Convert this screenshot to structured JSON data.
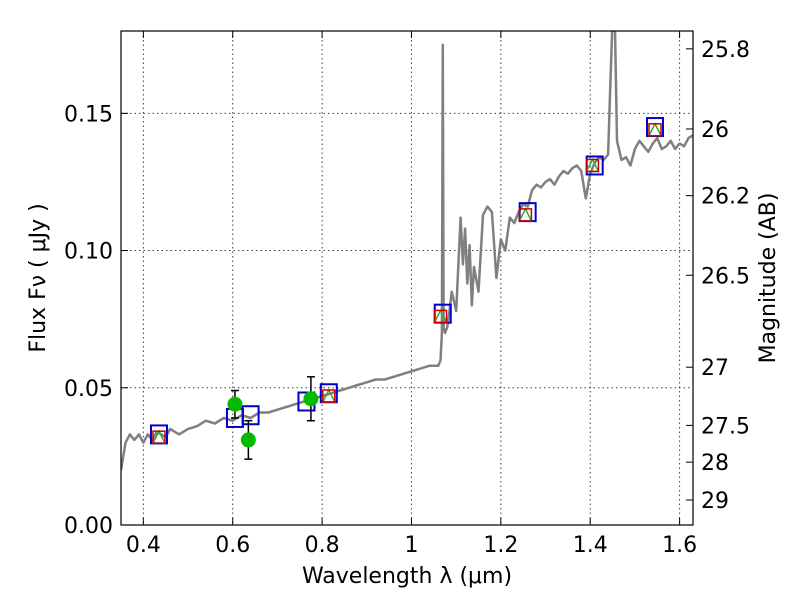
{
  "chart_data": {
    "type": "line",
    "xlabel": "Wavelength  λ (μm)",
    "ylabel": "Flux  Fν  ( μJy )",
    "ylabel_right": "Magnitude (AB)",
    "xlim": [
      0.35,
      1.63
    ],
    "ylim": [
      0.0,
      0.18
    ],
    "grid": true,
    "x_ticks": [
      0.4,
      0.6,
      0.8,
      1.0,
      1.2,
      1.4,
      1.6
    ],
    "x_tick_labels": [
      "0.4",
      "0.6",
      "0.8",
      "1",
      "1.2",
      "1.4",
      "1.6"
    ],
    "y_ticks": [
      0.0,
      0.05,
      0.1,
      0.15
    ],
    "y_tick_labels": [
      "0.00",
      "0.05",
      "0.10",
      "0.15"
    ],
    "right_ticks": [
      {
        "label": "25.8",
        "flux": 0.1735
      },
      {
        "label": "26",
        "flux": 0.1443
      },
      {
        "label": "26.2",
        "flux": 0.12
      },
      {
        "label": "26.5",
        "flux": 0.091
      },
      {
        "label": "27",
        "flux": 0.0575
      },
      {
        "label": "27.5",
        "flux": 0.0363
      },
      {
        "label": "28",
        "flux": 0.0229
      },
      {
        "label": "29",
        "flux": 0.0091
      }
    ],
    "series": [
      {
        "kind": "model",
        "color": "#808080",
        "x": [
          0.35,
          0.36,
          0.37,
          0.38,
          0.39,
          0.4,
          0.41,
          0.42,
          0.43,
          0.44,
          0.45,
          0.46,
          0.47,
          0.48,
          0.5,
          0.52,
          0.54,
          0.56,
          0.58,
          0.6,
          0.62,
          0.64,
          0.66,
          0.68,
          0.7,
          0.72,
          0.74,
          0.76,
          0.78,
          0.8,
          0.82,
          0.84,
          0.86,
          0.88,
          0.9,
          0.92,
          0.94,
          0.96,
          0.98,
          1.0,
          1.02,
          1.04,
          1.06,
          1.065,
          1.068,
          1.07,
          1.072,
          1.075,
          1.08,
          1.085,
          1.09,
          1.1,
          1.11,
          1.115,
          1.12,
          1.125,
          1.13,
          1.135,
          1.14,
          1.15,
          1.16,
          1.17,
          1.18,
          1.19,
          1.2,
          1.21,
          1.22,
          1.23,
          1.24,
          1.25,
          1.26,
          1.27,
          1.28,
          1.29,
          1.3,
          1.31,
          1.32,
          1.33,
          1.34,
          1.35,
          1.36,
          1.37,
          1.38,
          1.385,
          1.39,
          1.4,
          1.41,
          1.42,
          1.43,
          1.44,
          1.445,
          1.45,
          1.455,
          1.46,
          1.47,
          1.48,
          1.49,
          1.5,
          1.51,
          1.52,
          1.53,
          1.54,
          1.55,
          1.56,
          1.57,
          1.58,
          1.59,
          1.6,
          1.61,
          1.62,
          1.63
        ],
        "y": [
          0.02,
          0.03,
          0.033,
          0.031,
          0.033,
          0.03,
          0.033,
          0.031,
          0.034,
          0.033,
          0.032,
          0.035,
          0.034,
          0.033,
          0.035,
          0.036,
          0.038,
          0.037,
          0.039,
          0.038,
          0.04,
          0.039,
          0.041,
          0.041,
          0.042,
          0.043,
          0.044,
          0.045,
          0.046,
          0.047,
          0.048,
          0.049,
          0.05,
          0.051,
          0.052,
          0.053,
          0.053,
          0.054,
          0.055,
          0.056,
          0.057,
          0.058,
          0.058,
          0.06,
          0.07,
          0.175,
          0.072,
          0.07,
          0.072,
          0.078,
          0.085,
          0.078,
          0.112,
          0.095,
          0.108,
          0.088,
          0.102,
          0.08,
          0.094,
          0.085,
          0.113,
          0.116,
          0.114,
          0.09,
          0.104,
          0.1,
          0.112,
          0.11,
          0.114,
          0.117,
          0.116,
          0.122,
          0.124,
          0.123,
          0.125,
          0.126,
          0.124,
          0.127,
          0.129,
          0.128,
          0.13,
          0.131,
          0.129,
          0.124,
          0.119,
          0.128,
          0.132,
          0.134,
          0.133,
          0.135,
          0.16,
          0.185,
          0.185,
          0.14,
          0.133,
          0.134,
          0.131,
          0.137,
          0.14,
          0.138,
          0.136,
          0.139,
          0.141,
          0.137,
          0.138,
          0.14,
          0.137,
          0.139,
          0.138,
          0.141,
          0.142
        ]
      }
    ],
    "model_points": [
      {
        "x": 0.435,
        "y": 0.033
      },
      {
        "x": 0.605,
        "y": 0.039
      },
      {
        "x": 0.64,
        "y": 0.04
      },
      {
        "x": 0.765,
        "y": 0.045
      },
      {
        "x": 0.815,
        "y": 0.048
      },
      {
        "x": 1.07,
        "y": 0.077
      },
      {
        "x": 1.26,
        "y": 0.114
      },
      {
        "x": 1.41,
        "y": 0.131
      },
      {
        "x": 1.545,
        "y": 0.145
      }
    ],
    "photometry": [
      {
        "x": 0.435,
        "y": 0.032
      },
      {
        "x": 0.815,
        "y": 0.047
      },
      {
        "x": 1.065,
        "y": 0.076
      },
      {
        "x": 1.255,
        "y": 0.113
      },
      {
        "x": 1.405,
        "y": 0.131
      },
      {
        "x": 1.545,
        "y": 0.144
      }
    ],
    "measurements": [
      {
        "x": 0.605,
        "y": 0.044,
        "err": 0.005
      },
      {
        "x": 0.635,
        "y": 0.031,
        "err": 0.007
      },
      {
        "x": 0.775,
        "y": 0.046,
        "err": 0.008
      }
    ],
    "colors": {
      "model_line": "#808080",
      "model_square": "#0000cc",
      "photometry_square": "#cc0000",
      "triangle": "#33aa33",
      "measurement": "#00bb00",
      "errorbar": "#000000"
    }
  }
}
